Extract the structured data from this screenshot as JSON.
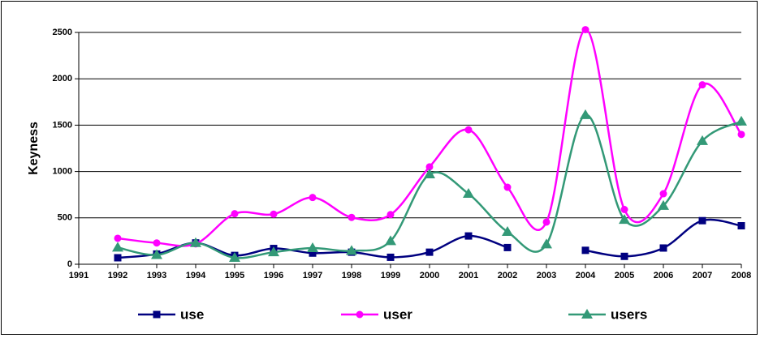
{
  "chart_data": {
    "type": "line",
    "y_label": "Keyness",
    "categories": [
      "1991",
      "1992",
      "1993",
      "1994",
      "1995",
      "1996",
      "1997",
      "1998",
      "1999",
      "2000",
      "2001",
      "2002",
      "2003",
      "2004",
      "2005",
      "2006",
      "2007",
      "2008"
    ],
    "series": [
      {
        "name": "use",
        "color": "#000080",
        "marker": "square",
        "values": [
          null,
          70,
          110,
          230,
          95,
          170,
          120,
          130,
          75,
          130,
          305,
          180,
          null,
          150,
          85,
          175,
          470,
          415
        ]
      },
      {
        "name": "user",
        "color": "#ff00ff",
        "marker": "circle",
        "values": [
          null,
          280,
          230,
          220,
          545,
          540,
          720,
          505,
          535,
          1050,
          1450,
          830,
          455,
          2530,
          590,
          760,
          1935,
          1400
        ]
      },
      {
        "name": "users",
        "color": "#339977",
        "marker": "triangle",
        "values": [
          null,
          180,
          100,
          230,
          70,
          130,
          175,
          145,
          250,
          970,
          760,
          350,
          215,
          1610,
          480,
          630,
          1330,
          1540
        ]
      }
    ],
    "ylim": [
      0,
      2500
    ],
    "yticks": [
      0,
      500,
      1000,
      1500,
      2000,
      2500
    ],
    "grid": true,
    "smooth": true,
    "legend": "bottom"
  }
}
